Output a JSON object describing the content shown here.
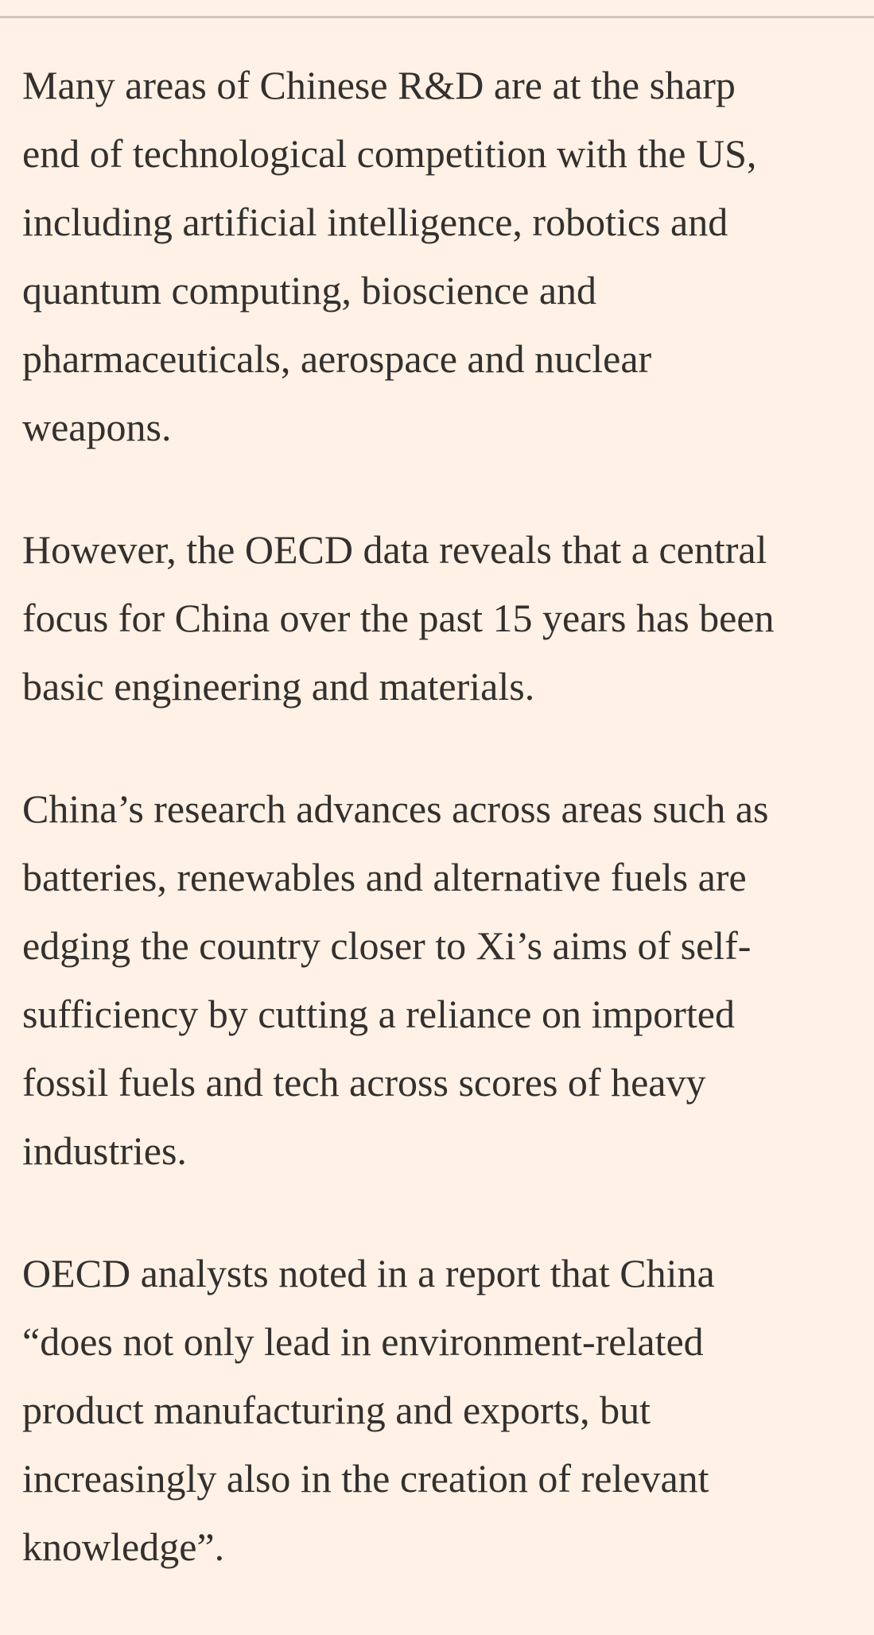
{
  "article": {
    "paragraphs": [
      {
        "lines": [
          "Many areas of Chinese R&D are at the sharp",
          "end of technological competition with the US,",
          "including artificial intelligence, robotics and",
          "quantum computing, bioscience and",
          "pharmaceuticals, aerospace and nuclear",
          "weapons."
        ]
      },
      {
        "lines": [
          "However, the OECD data reveals that a central",
          "focus for China over the past 15 years has been",
          "basic engineering and materials."
        ]
      },
      {
        "lines": [
          "China’s research advances across areas such as",
          "batteries, renewables and alternative fuels are",
          "edging the country closer to Xi’s aims of self-",
          "sufficiency by cutting a reliance on imported",
          "fossil fuels and tech across scores of heavy",
          "industries."
        ]
      },
      {
        "lines": [
          "OECD analysts noted in a report that China",
          "“does not only lead in environment-related",
          "product manufacturing and exports, but",
          "increasingly also in the creation of relevant",
          "knowledge”."
        ]
      }
    ]
  }
}
